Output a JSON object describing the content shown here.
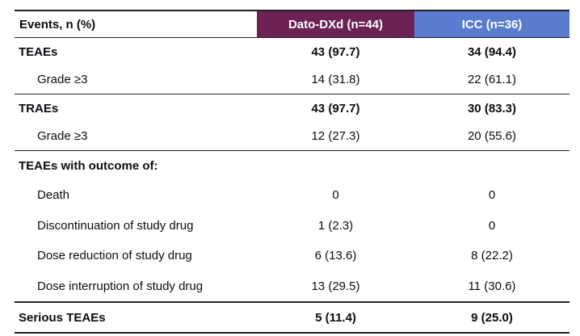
{
  "table": {
    "header": {
      "events_label": "Events, n (%)",
      "dato_label": "Dato-DXd (n=44)",
      "icc_label": "ICC (n=36)"
    },
    "rows": [
      {
        "label": "TEAEs",
        "dato": "43 (97.7)",
        "icc": "34 (94.4)"
      },
      {
        "label": "Grade ≥3",
        "dato": "14 (31.8)",
        "icc": "22 (61.1)"
      },
      {
        "label": "TRAEs",
        "dato": "43 (97.7)",
        "icc": "30 (83.3)"
      },
      {
        "label": "Grade ≥3",
        "dato": "12 (27.3)",
        "icc": "20 (55.6)"
      },
      {
        "label": "TEAEs with outcome of:",
        "dato": "",
        "icc": ""
      },
      {
        "label": "Death",
        "dato": "0",
        "icc": "0"
      },
      {
        "label": "Discontinuation of study drug",
        "dato": "1 (2.3)",
        "icc": "0"
      },
      {
        "label": "Dose reduction of study drug",
        "dato": "6 (13.6)",
        "icc": "8 (22.2)"
      },
      {
        "label": "Dose interruption of study drug",
        "dato": "13 (29.5)",
        "icc": "11 (30.6)"
      },
      {
        "label": "Serious TEAEs",
        "dato": "5 (11.4)",
        "icc": "9 (25.0)"
      }
    ]
  },
  "colors": {
    "dato_header_bg": "#6d2256",
    "icc_header_bg": "#5a7bce",
    "header_text": "#ffffff",
    "border_dark": "#20202a"
  }
}
